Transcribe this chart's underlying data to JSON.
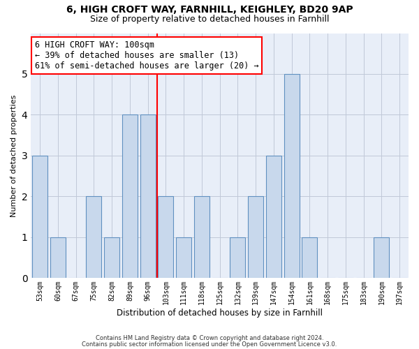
{
  "title_line1": "6, HIGH CROFT WAY, FARNHILL, KEIGHLEY, BD20 9AP",
  "title_line2": "Size of property relative to detached houses in Farnhill",
  "xlabel": "Distribution of detached houses by size in Farnhill",
  "ylabel": "Number of detached properties",
  "categories": [
    "53sqm",
    "60sqm",
    "67sqm",
    "75sqm",
    "82sqm",
    "89sqm",
    "96sqm",
    "103sqm",
    "111sqm",
    "118sqm",
    "125sqm",
    "132sqm",
    "139sqm",
    "147sqm",
    "154sqm",
    "161sqm",
    "168sqm",
    "175sqm",
    "183sqm",
    "190sqm",
    "197sqm"
  ],
  "values": [
    3,
    1,
    0,
    2,
    1,
    4,
    4,
    2,
    1,
    2,
    0,
    1,
    2,
    3,
    5,
    1,
    0,
    0,
    0,
    1,
    0
  ],
  "bar_color": "#c8d8ec",
  "bar_edge_color": "#6090c0",
  "red_line_color": "red",
  "annotation_line1": "6 HIGH CROFT WAY: 100sqm",
  "annotation_line2": "← 39% of detached houses are smaller (13)",
  "annotation_line3": "61% of semi-detached houses are larger (20) →",
  "annotation_box_color": "white",
  "annotation_box_edge": "red",
  "ylim": [
    0,
    6
  ],
  "yticks": [
    0,
    1,
    2,
    3,
    4,
    5,
    6
  ],
  "footnote1": "Contains HM Land Registry data © Crown copyright and database right 2024.",
  "footnote2": "Contains public sector information licensed under the Open Government Licence v3.0.",
  "bg_color": "#e8eef8",
  "grid_color": "#c0c8d8",
  "title_fontsize": 10,
  "subtitle_fontsize": 9,
  "annot_fontsize": 8.5,
  "bar_width": 0.85
}
